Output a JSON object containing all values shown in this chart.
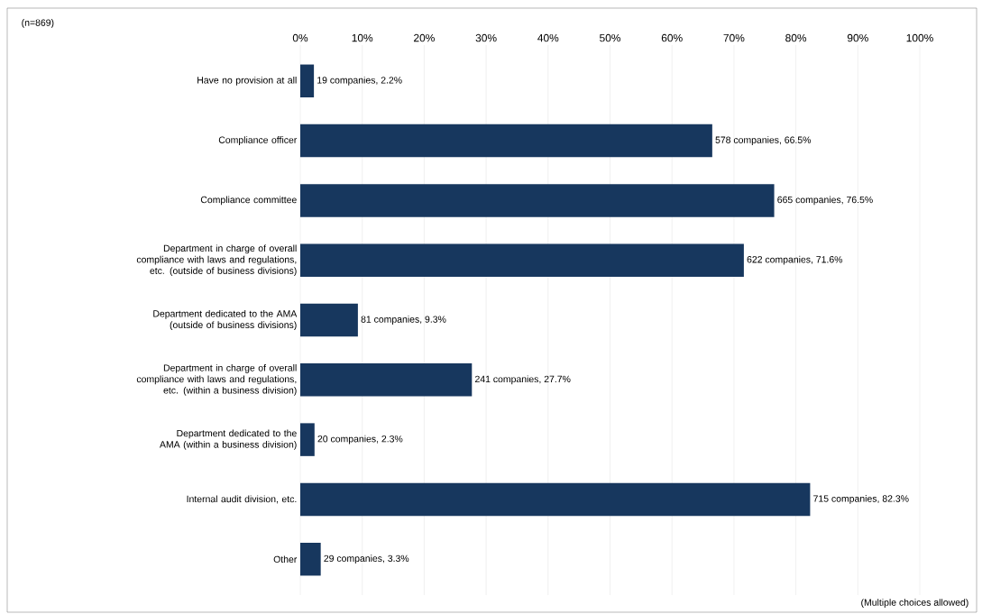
{
  "chart_data": {
    "type": "bar",
    "orientation": "horizontal",
    "categories": [
      "Have no provision at all",
      "Compliance officer",
      "Compliance committee",
      "Department in charge of overall compliance with laws and regulations, etc. (outside of business divisions)",
      "Department dedicated to the AMA (outside of business divisions)",
      "Department in charge of overall compliance with laws and regulations, etc. (within a business division)",
      "Department dedicated to the AMA (within a business division)",
      "Internal audit division, etc.",
      "Other"
    ],
    "values": [
      2.2,
      66.5,
      76.5,
      71.6,
      9.3,
      27.7,
      2.3,
      82.3,
      3.3
    ],
    "value_labels": [
      "19 companies, 2.2%",
      "578 companies, 66.5%",
      "665 companies, 76.5%",
      "622 companies, 71.6%",
      "81 companies, 9.3%",
      "241 companies, 27.7%",
      "20 companies, 2.3%",
      "715 companies, 82.3%",
      "29 companies, 3.3%"
    ],
    "color": "#17375e",
    "xlim": [
      0,
      100
    ],
    "xticks": [
      {
        "value": 0,
        "label": "0%"
      },
      {
        "value": 10,
        "label": "10%"
      },
      {
        "value": 20,
        "label": "20%"
      },
      {
        "value": 30,
        "label": "30%"
      },
      {
        "value": 40,
        "label": "40%"
      },
      {
        "value": 50,
        "label": "50%"
      },
      {
        "value": 60,
        "label": "60%"
      },
      {
        "value": 70,
        "label": "70%"
      },
      {
        "value": 80,
        "label": "80%"
      },
      {
        "value": 90,
        "label": "90%"
      },
      {
        "value": 100,
        "label": "100%"
      }
    ],
    "grid": "x",
    "annotations": [
      "(n=869)",
      "(Multiple choices allowed)"
    ]
  }
}
